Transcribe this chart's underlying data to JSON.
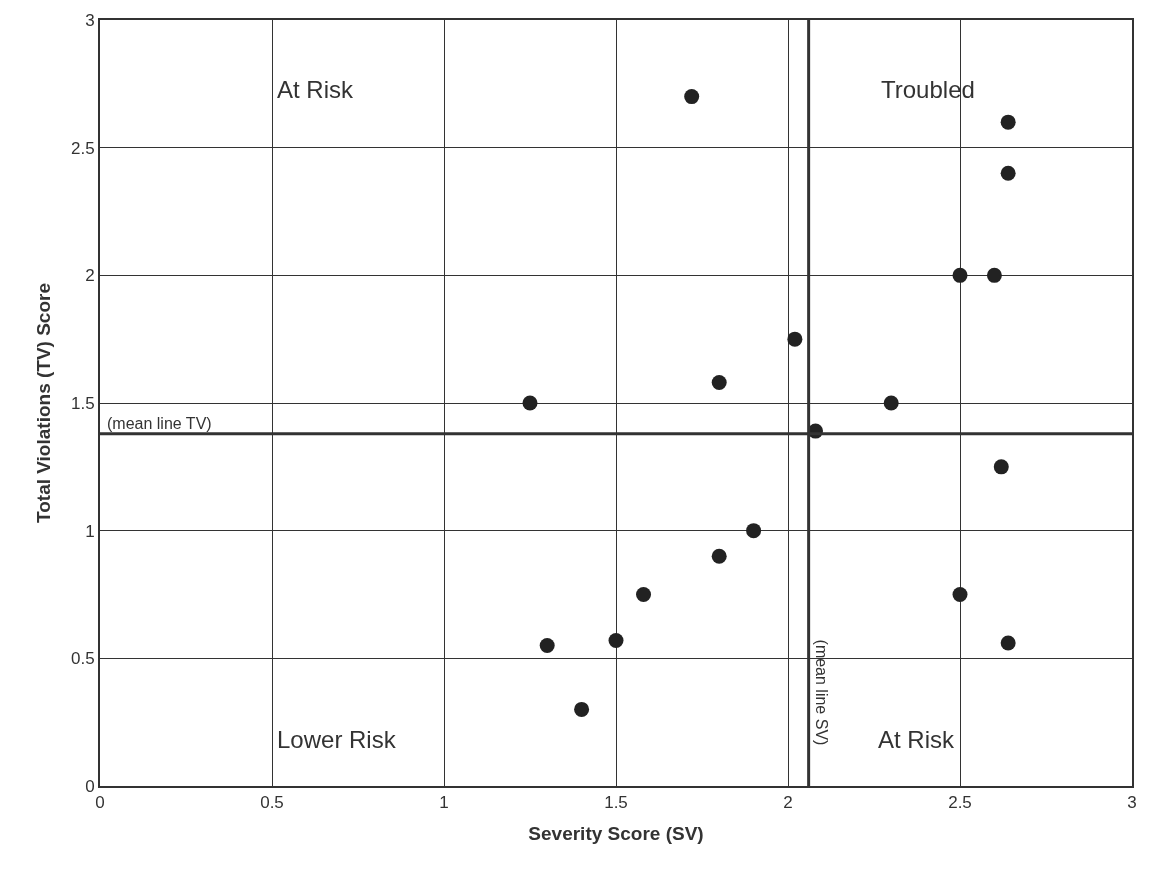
{
  "chart_data": {
    "type": "scatter",
    "xlabel": "Severity Score (SV)",
    "ylabel": "Total Violations (TV) Score",
    "x": [
      1.72,
      2.64,
      2.64,
      2.5,
      2.6,
      2.02,
      1.8,
      1.25,
      2.3,
      2.08,
      2.62,
      1.9,
      1.8,
      1.58,
      2.5,
      1.3,
      1.5,
      2.64,
      1.4
    ],
    "values": [
      2.7,
      2.6,
      2.4,
      2.0,
      2.0,
      1.75,
      1.58,
      1.5,
      1.5,
      1.39,
      1.25,
      1.0,
      0.9,
      0.75,
      0.75,
      0.55,
      0.57,
      0.56,
      0.3
    ],
    "color": "#222222",
    "marker": "circle",
    "xlim": [
      0,
      3
    ],
    "xticks": [
      0,
      0.5,
      1,
      1.5,
      2,
      2.5,
      3
    ],
    "ylim": [
      0,
      3
    ],
    "yticks": [
      0,
      0.5,
      1,
      1.5,
      2,
      2.5,
      3
    ],
    "grid": true,
    "legend": false,
    "ref_lines": [
      {
        "axis": "x",
        "value": 2.06,
        "label": "(mean line SV)",
        "color": "#333333"
      },
      {
        "axis": "y",
        "value": 1.38,
        "label": "(mean line TV)",
        "color": "#333333"
      }
    ],
    "annotations": [
      "At Risk",
      "Troubled",
      "Lower Risk",
      "At Risk"
    ]
  }
}
